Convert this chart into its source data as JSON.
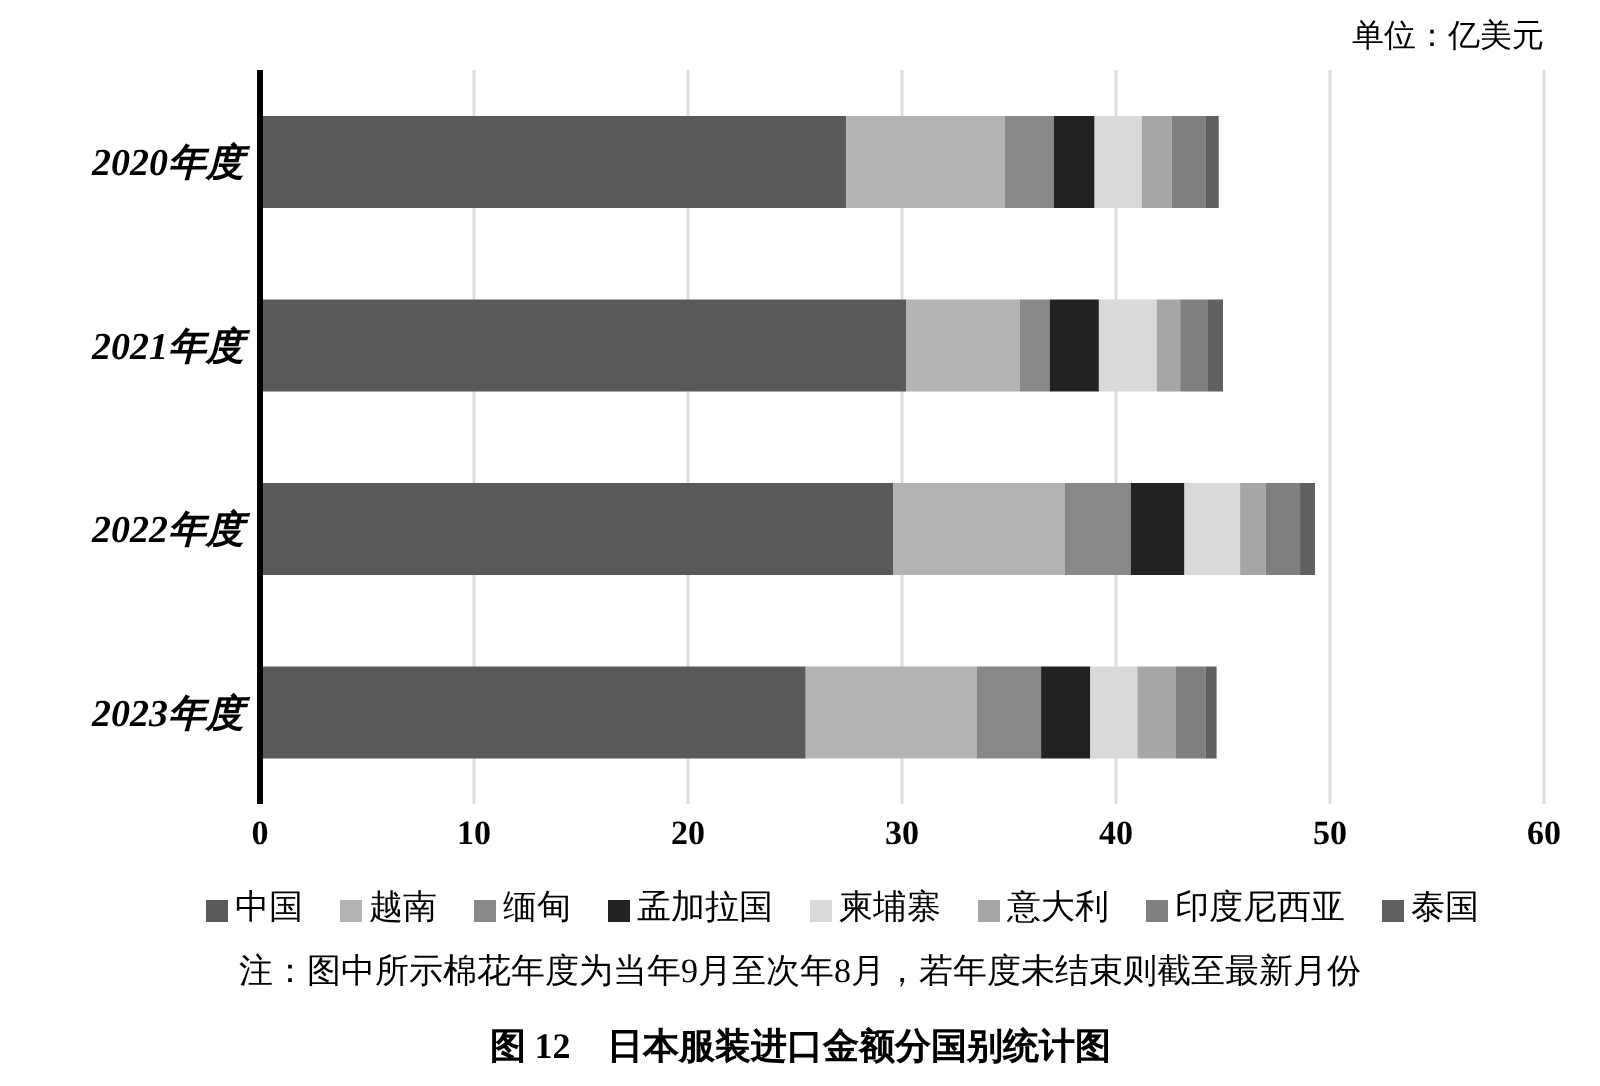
{
  "chart_data": {
    "type": "bar",
    "orientation": "horizontal",
    "stacked": true,
    "title": "图 12　日本服装进口金额分国别统计图",
    "annotations": [
      "单位：亿美元",
      "注：图中所示棉花年度为当年9月至次年8月，若年度未结束则截至最新月份"
    ],
    "categories": [
      "2020年度",
      "2021年度",
      "2022年度",
      "2023年度"
    ],
    "series": [
      {
        "name": "中国",
        "color": "#595959",
        "values": [
          27.4,
          30.2,
          29.6,
          25.5
        ]
      },
      {
        "name": "越南",
        "color": "#b3b3b3",
        "values": [
          7.4,
          5.3,
          8.0,
          8.0
        ]
      },
      {
        "name": "缅甸",
        "color": "#888888",
        "values": [
          2.3,
          1.4,
          3.1,
          3.0
        ]
      },
      {
        "name": "孟加拉国",
        "color": "#222222",
        "values": [
          1.9,
          2.3,
          2.5,
          2.3
        ]
      },
      {
        "name": "柬埔寨",
        "color": "#d9d9d9",
        "values": [
          2.2,
          2.7,
          2.6,
          2.2
        ]
      },
      {
        "name": "意大利",
        "color": "#a6a6a6",
        "values": [
          1.4,
          1.1,
          1.2,
          1.8
        ]
      },
      {
        "name": "印度尼西亚",
        "color": "#7f7f7f",
        "values": [
          1.6,
          1.3,
          1.6,
          1.4
        ]
      },
      {
        "name": "泰国",
        "color": "#606060",
        "values": [
          0.6,
          0.7,
          0.7,
          0.5
        ]
      }
    ],
    "xlim": [
      0,
      60
    ],
    "xticks": [
      0,
      10,
      20,
      30,
      40,
      50,
      60
    ],
    "grid": "x",
    "legend": "bottom"
  }
}
